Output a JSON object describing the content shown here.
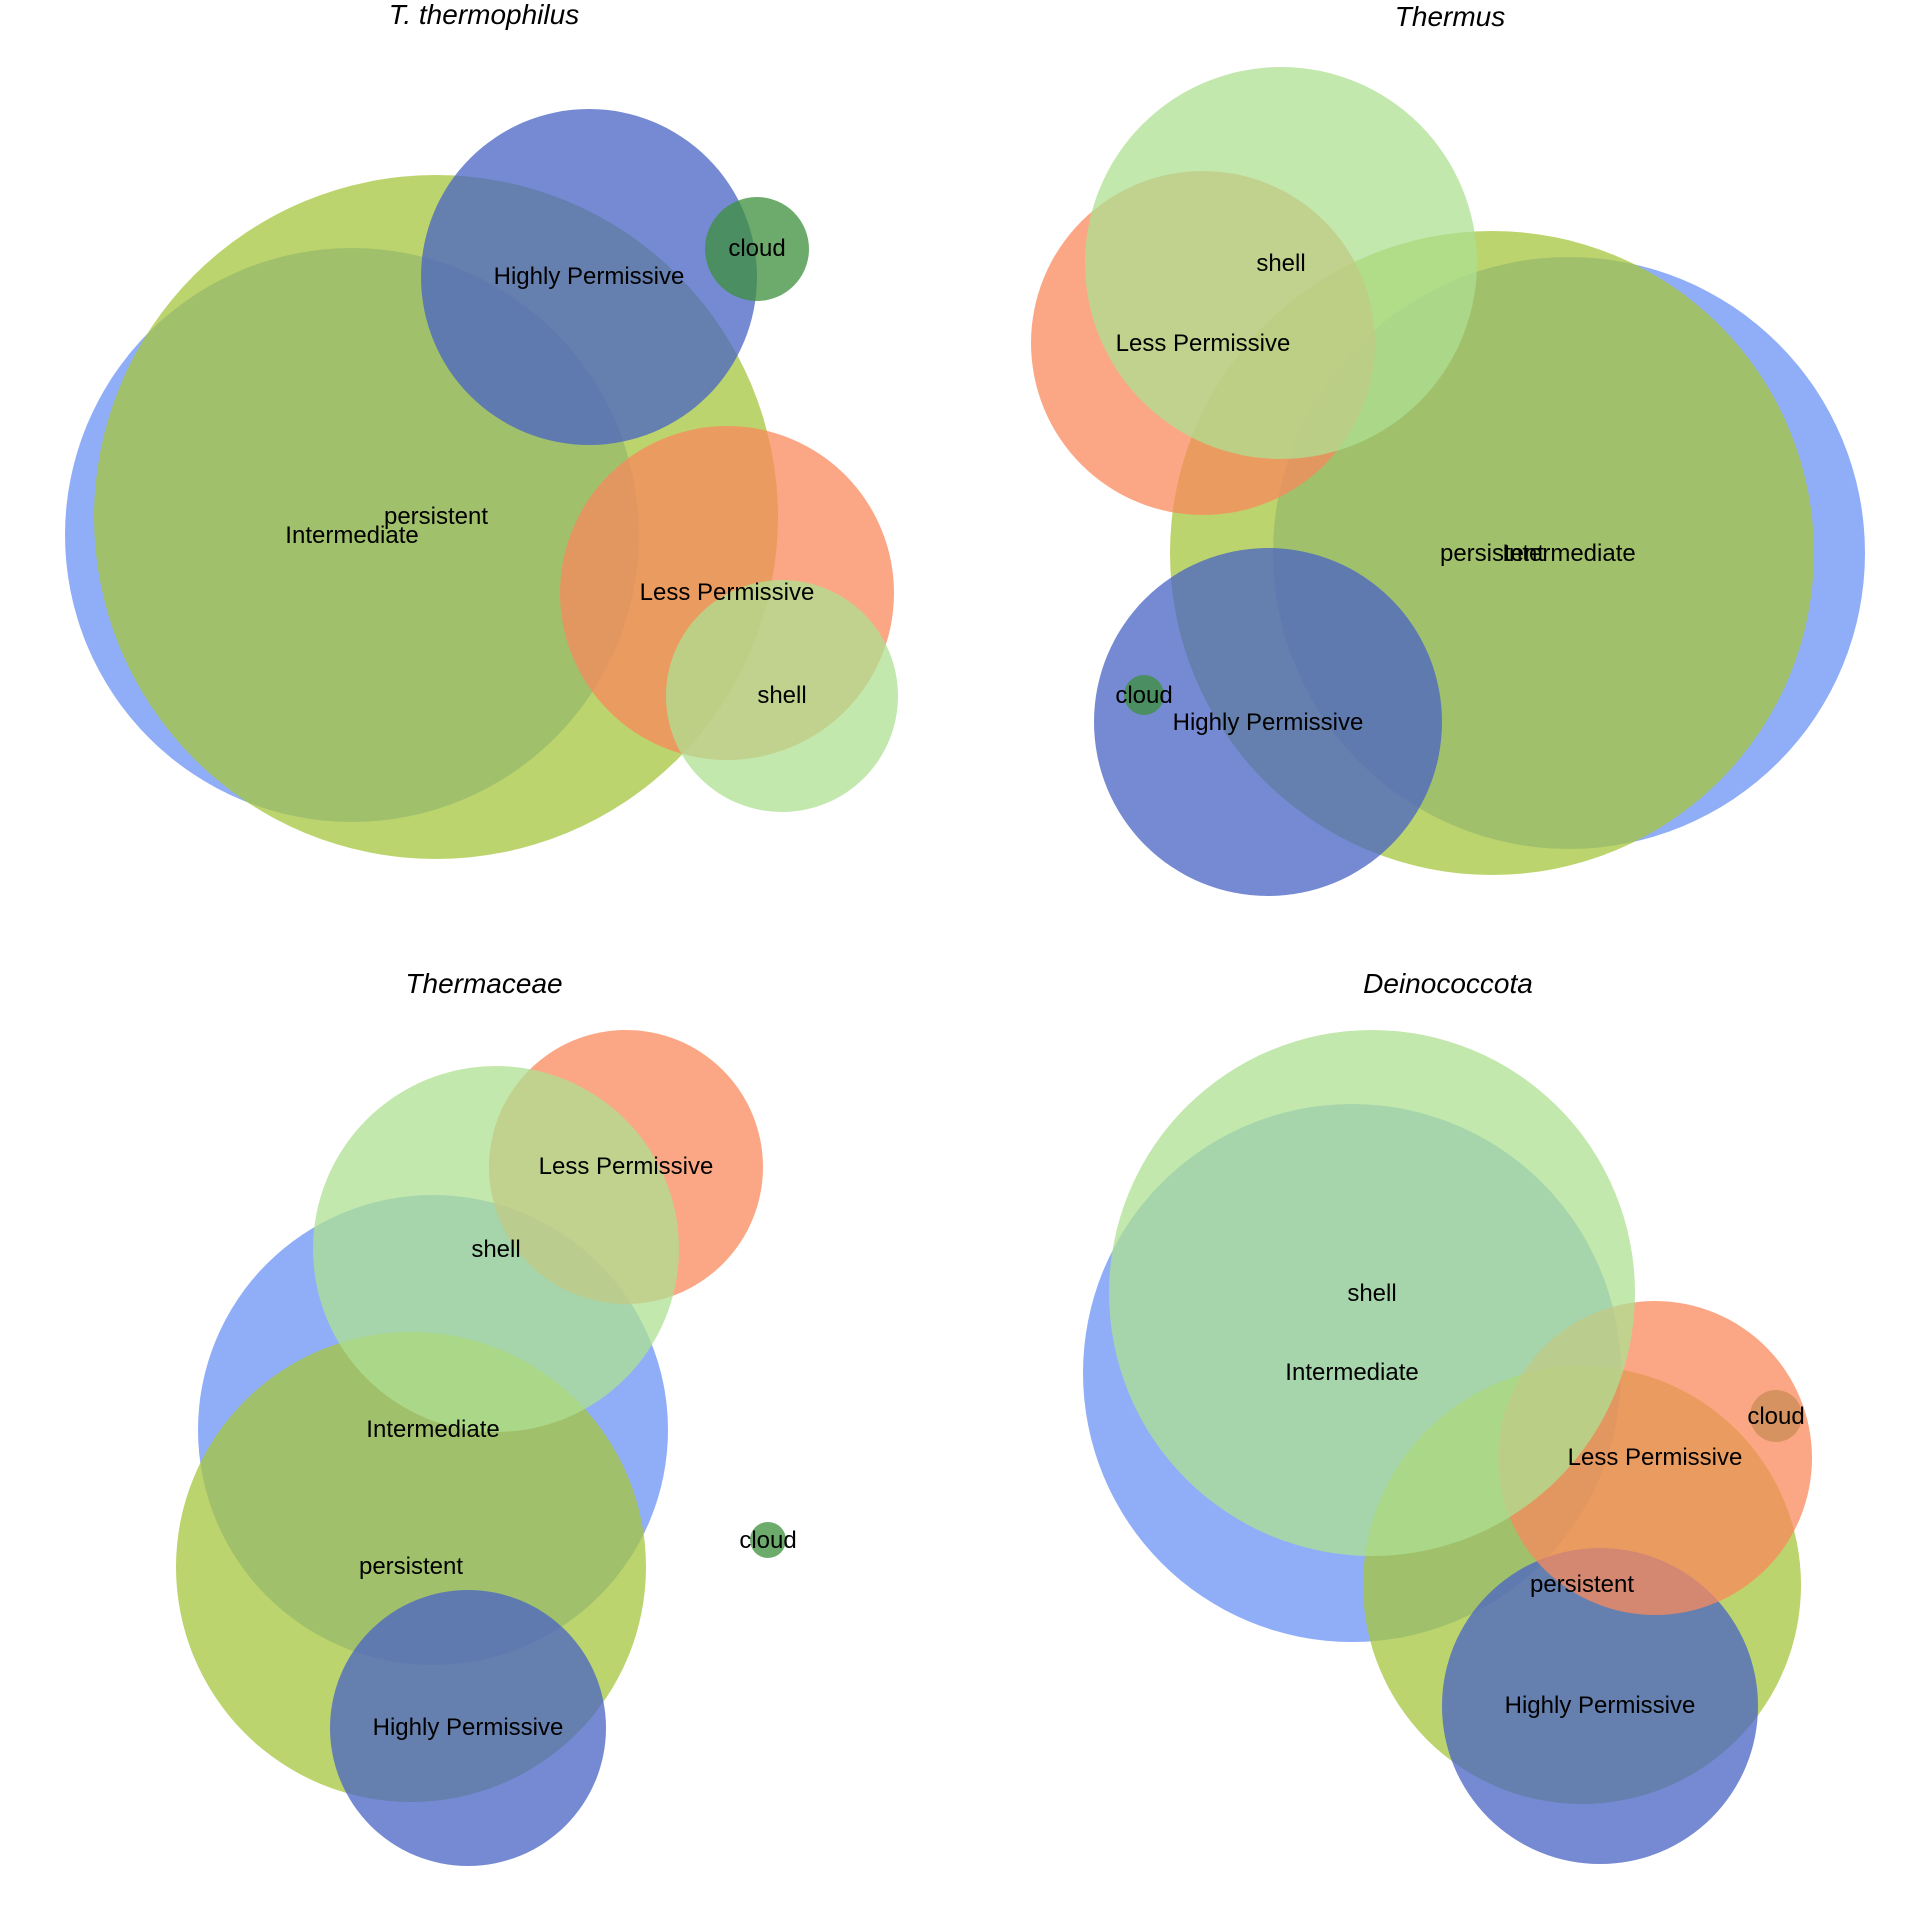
{
  "legend_colors": {
    "Intermediate": "#6b93f5",
    "persistent": "#a6c63c",
    "Highly Permissive": "#4863c6",
    "cloud": "#3c8f3c",
    "Less Permissive": "#f98a5c",
    "shell": "#aee092"
  },
  "panels": [
    {
      "title": "T. thermophilus",
      "circles": [
        {
          "label": "Intermediate",
          "color": "#6b93f5"
        },
        {
          "label": "persistent",
          "color": "#a6c63c"
        },
        {
          "label": "Highly Permissive",
          "color": "#4863c6"
        },
        {
          "label": "cloud",
          "color": "#3c8f3c"
        },
        {
          "label": "Less Permissive",
          "color": "#f98a5c"
        },
        {
          "label": "shell",
          "color": "#aee092"
        }
      ]
    },
    {
      "title": "Thermus",
      "circles": [
        {
          "label": "Intermediate",
          "color": "#6b93f5"
        },
        {
          "label": "persistent",
          "color": "#a6c63c"
        },
        {
          "label": "Highly Permissive",
          "color": "#4863c6"
        },
        {
          "label": "cloud",
          "color": "#3c8f3c"
        },
        {
          "label": "Less Permissive",
          "color": "#f98a5c"
        },
        {
          "label": "shell",
          "color": "#aee092"
        }
      ]
    },
    {
      "title": "Thermaceae",
      "circles": [
        {
          "label": "Intermediate",
          "color": "#6b93f5"
        },
        {
          "label": "persistent",
          "color": "#a6c63c"
        },
        {
          "label": "Highly Permissive",
          "color": "#4863c6"
        },
        {
          "label": "cloud",
          "color": "#3c8f3c"
        },
        {
          "label": "Less Permissive",
          "color": "#f98a5c"
        },
        {
          "label": "shell",
          "color": "#aee092"
        }
      ]
    },
    {
      "title": "Deinococcota",
      "circles": [
        {
          "label": "Intermediate",
          "color": "#6b93f5"
        },
        {
          "label": "persistent",
          "color": "#a6c63c"
        },
        {
          "label": "Highly Permissive",
          "color": "#4863c6"
        },
        {
          "label": "cloud",
          "color": "#3c8f3c"
        },
        {
          "label": "Less Permissive",
          "color": "#f98a5c"
        },
        {
          "label": "shell",
          "color": "#aee092"
        }
      ]
    }
  ]
}
